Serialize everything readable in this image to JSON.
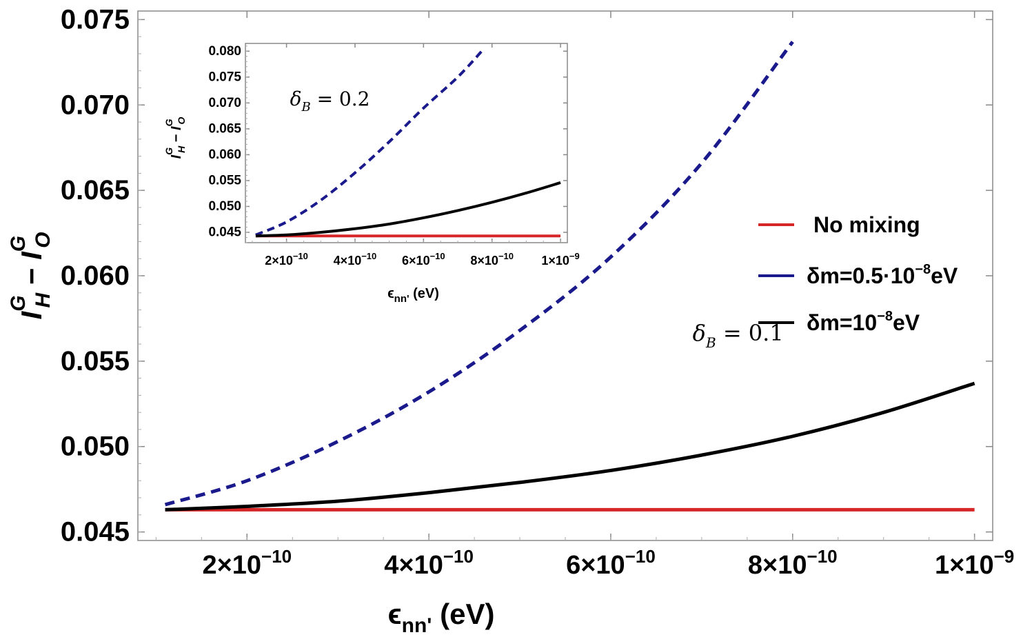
{
  "chart_data": [
    {
      "type": "line",
      "id": "main",
      "xlabel": "ϵnn' (eV)",
      "xlabel_main": "ϵ",
      "xlabel_sub": "nn'",
      "xlabel_unit": " (eV)",
      "ylabel": "I_H^G − I_O^G",
      "ylabel_I": "I",
      "ylabel_H": "H",
      "ylabel_O": "O",
      "ylabel_G": "G",
      "ylabel_minus": " − ",
      "xlim": [
        8e-11,
        1.02e-09
      ],
      "ylim": [
        0.0445,
        0.0755
      ],
      "x_ticks": [
        {
          "value": 2e-10,
          "mant": "2",
          "exp": "−10"
        },
        {
          "value": 4e-10,
          "mant": "4",
          "exp": "−10"
        },
        {
          "value": 6e-10,
          "mant": "6",
          "exp": "−10"
        },
        {
          "value": 8e-10,
          "mant": "8",
          "exp": "−10"
        },
        {
          "value": 1e-09,
          "mant": "1",
          "exp": "−9"
        }
      ],
      "times_sign": "×10",
      "y_ticks": [
        {
          "value": 0.045,
          "label": "0.045"
        },
        {
          "value": 0.05,
          "label": "0.050"
        },
        {
          "value": 0.055,
          "label": "0.055"
        },
        {
          "value": 0.06,
          "label": "0.060"
        },
        {
          "value": 0.065,
          "label": "0.065"
        },
        {
          "value": 0.07,
          "label": "0.070"
        },
        {
          "value": 0.075,
          "label": "0.075"
        }
      ],
      "annotation": {
        "delta": "δ",
        "sub": "B",
        "text": " = 0.1",
        "x": 6.9e-10,
        "y": 0.0562
      },
      "series": [
        {
          "name": "No mixing",
          "color": "#d62728",
          "dash": "none",
          "x": [
            1.1e-10,
            1e-09
          ],
          "y": [
            0.0463,
            0.0463
          ]
        },
        {
          "name": "δm=0.5·10^-8eV",
          "color": "#1a1a8c",
          "dash": "dash",
          "x": [
            1.1e-10,
            2e-10,
            3e-10,
            4e-10,
            5e-10,
            6e-10,
            7e-10,
            8e-10
          ],
          "y": [
            0.0466,
            0.048,
            0.0503,
            0.0532,
            0.0568,
            0.0611,
            0.0666,
            0.0737
          ]
        },
        {
          "name": "δm=10^-8eV",
          "color": "#000000",
          "dash": "none",
          "x": [
            1.1e-10,
            2e-10,
            3e-10,
            4e-10,
            5e-10,
            6e-10,
            7e-10,
            8e-10,
            9e-10,
            1e-09
          ],
          "y": [
            0.0463,
            0.0465,
            0.0468,
            0.0473,
            0.0479,
            0.0486,
            0.0495,
            0.0506,
            0.052,
            0.0537
          ]
        }
      ]
    },
    {
      "type": "line",
      "id": "inset",
      "xlabel": "ϵnn' (eV)",
      "ylabel": "I_H^G − I_O^G",
      "xlim": [
        8e-11,
        1.02e-09
      ],
      "ylim": [
        0.043,
        0.0815
      ],
      "x_ticks": [
        {
          "value": 2e-10,
          "mant": "2",
          "exp": "−10"
        },
        {
          "value": 4e-10,
          "mant": "4",
          "exp": "−10"
        },
        {
          "value": 6e-10,
          "mant": "6",
          "exp": "−10"
        },
        {
          "value": 8e-10,
          "mant": "8",
          "exp": "−10"
        },
        {
          "value": 1e-09,
          "mant": "1",
          "exp": "−9"
        }
      ],
      "y_ticks": [
        {
          "value": 0.045,
          "label": "0.045"
        },
        {
          "value": 0.05,
          "label": "0.050"
        },
        {
          "value": 0.055,
          "label": "0.055"
        },
        {
          "value": 0.06,
          "label": "0.060"
        },
        {
          "value": 0.065,
          "label": "0.065"
        },
        {
          "value": 0.07,
          "label": "0.070"
        },
        {
          "value": 0.075,
          "label": "0.075"
        },
        {
          "value": 0.08,
          "label": "0.080"
        }
      ],
      "annotation": {
        "delta": "δ",
        "sub": "B",
        "text": " = 0.2",
        "x": 2.1e-10,
        "y": 0.0695
      },
      "series": [
        {
          "name": "No mixing",
          "color": "#d62728",
          "dash": "none",
          "x": [
            1.1e-10,
            1e-09
          ],
          "y": [
            0.0443,
            0.0443
          ]
        },
        {
          "name": "δm=0.5·10^-8eV",
          "color": "#1a1a8c",
          "dash": "dash",
          "x": [
            1.1e-10,
            2e-10,
            3e-10,
            4e-10,
            5e-10,
            6e-10,
            7e-10,
            7.7e-10
          ],
          "y": [
            0.0445,
            0.047,
            0.0512,
            0.0565,
            0.0625,
            0.069,
            0.075,
            0.08
          ]
        },
        {
          "name": "δm=10^-8eV",
          "color": "#000000",
          "dash": "none",
          "x": [
            1.1e-10,
            2e-10,
            3e-10,
            4e-10,
            5e-10,
            6e-10,
            7e-10,
            8e-10,
            9e-10,
            1e-09
          ],
          "y": [
            0.0443,
            0.0445,
            0.045,
            0.0457,
            0.0466,
            0.0478,
            0.0492,
            0.0508,
            0.0526,
            0.0546
          ]
        }
      ]
    }
  ],
  "legend": {
    "placement": "right",
    "items": [
      {
        "label": "No mixing",
        "color": "#d62728"
      },
      {
        "label_pre": "δm=0.5·10",
        "label_sup": "−8",
        "label_post": "eV",
        "color": "#1a1a8c"
      },
      {
        "label_pre": "δm=10",
        "label_sup": "−8",
        "label_post": "eV",
        "color": "#000000"
      }
    ]
  }
}
